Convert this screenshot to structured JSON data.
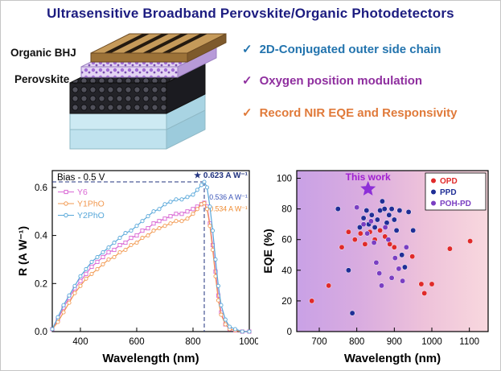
{
  "title": "Ultrasensitive Broadband Perovskite/Organic Photodetectors",
  "device": {
    "layers": [
      "Organic BHJ",
      "Perovskite"
    ]
  },
  "highlights": [
    {
      "check": "✓",
      "text": "2D-Conjugated outer side chain",
      "color": "#2374ae"
    },
    {
      "check": "✓",
      "text": "Oxygen position modulation",
      "color": "#8f2f9f"
    },
    {
      "check": "✓",
      "text": "Record NIR EQE and Responsivity",
      "color": "#e07a3a"
    }
  ],
  "chart_data": [
    {
      "type": "line",
      "title": "",
      "xlabel": "Wavelength (nm)",
      "ylabel": "R (A W⁻¹)",
      "xlim": [
        300,
        1000
      ],
      "ylim": [
        0,
        0.67
      ],
      "xticks": [
        [
          400,
          "400"
        ],
        [
          600,
          "600"
        ],
        [
          800,
          "800"
        ],
        [
          1000,
          "1000"
        ]
      ],
      "yticks": [
        [
          0.0,
          "0.0"
        ],
        [
          0.2,
          "0.2"
        ],
        [
          0.4,
          "0.4"
        ],
        [
          0.6,
          "0.6"
        ]
      ],
      "bias_label": "Bias - 0.5 V",
      "peak": {
        "x": 840,
        "y": 0.623,
        "label": "★ 0.623 A W⁻¹",
        "color": "#21337f"
      },
      "value_labels": [
        {
          "text": "0.536 A W⁻¹",
          "color": "#3b55b8",
          "x": 852,
          "y": 0.55
        },
        {
          "text": "0.534 A W⁻¹",
          "color": "#ef8c33",
          "x": 852,
          "y": 0.5
        }
      ],
      "legend_position": "upper-left",
      "series": [
        {
          "name": "Y6",
          "color": "#d967d4",
          "marker": "square",
          "points": [
            [
              300,
              0.01
            ],
            [
              320,
              0.05
            ],
            [
              340,
              0.1
            ],
            [
              360,
              0.14
            ],
            [
              380,
              0.18
            ],
            [
              400,
              0.21
            ],
            [
              420,
              0.24
            ],
            [
              440,
              0.27
            ],
            [
              460,
              0.29
            ],
            [
              480,
              0.31
            ],
            [
              500,
              0.33
            ],
            [
              520,
              0.34
            ],
            [
              540,
              0.36
            ],
            [
              560,
              0.37
            ],
            [
              580,
              0.39
            ],
            [
              600,
              0.4
            ],
            [
              620,
              0.42
            ],
            [
              640,
              0.43
            ],
            [
              660,
              0.45
            ],
            [
              680,
              0.46
            ],
            [
              700,
              0.47
            ],
            [
              720,
              0.48
            ],
            [
              740,
              0.49
            ],
            [
              760,
              0.49
            ],
            [
              780,
              0.5
            ],
            [
              800,
              0.51
            ],
            [
              815,
              0.52
            ],
            [
              830,
              0.53
            ],
            [
              840,
              0.536
            ],
            [
              850,
              0.52
            ],
            [
              860,
              0.45
            ],
            [
              870,
              0.36
            ],
            [
              880,
              0.25
            ],
            [
              890,
              0.15
            ],
            [
              900,
              0.08
            ],
            [
              915,
              0.03
            ],
            [
              930,
              0.01
            ],
            [
              950,
              0.005
            ],
            [
              975,
              0.0
            ],
            [
              1000,
              0.0
            ]
          ]
        },
        {
          "name": "Y1PhO",
          "color": "#f29a52",
          "marker": "circle",
          "points": [
            [
              300,
              0.01
            ],
            [
              320,
              0.04
            ],
            [
              340,
              0.08
            ],
            [
              360,
              0.12
            ],
            [
              380,
              0.16
            ],
            [
              400,
              0.19
            ],
            [
              420,
              0.22
            ],
            [
              440,
              0.24
            ],
            [
              460,
              0.26
            ],
            [
              480,
              0.28
            ],
            [
              500,
              0.3
            ],
            [
              520,
              0.31
            ],
            [
              540,
              0.33
            ],
            [
              560,
              0.34
            ],
            [
              580,
              0.36
            ],
            [
              600,
              0.37
            ],
            [
              620,
              0.39
            ],
            [
              640,
              0.4
            ],
            [
              660,
              0.42
            ],
            [
              680,
              0.43
            ],
            [
              700,
              0.44
            ],
            [
              720,
              0.45
            ],
            [
              740,
              0.46
            ],
            [
              760,
              0.46
            ],
            [
              780,
              0.47
            ],
            [
              800,
              0.49
            ],
            [
              815,
              0.51
            ],
            [
              830,
              0.53
            ],
            [
              840,
              0.534
            ],
            [
              850,
              0.51
            ],
            [
              860,
              0.44
            ],
            [
              870,
              0.34
            ],
            [
              880,
              0.23
            ],
            [
              890,
              0.13
            ],
            [
              900,
              0.07
            ],
            [
              915,
              0.03
            ],
            [
              930,
              0.01
            ],
            [
              950,
              0.005
            ],
            [
              975,
              0.0
            ],
            [
              1000,
              0.0
            ]
          ]
        },
        {
          "name": "Y2PhO",
          "color": "#57a7d9",
          "marker": "circle",
          "points": [
            [
              300,
              0.01
            ],
            [
              320,
              0.06
            ],
            [
              340,
              0.11
            ],
            [
              360,
              0.15
            ],
            [
              380,
              0.19
            ],
            [
              400,
              0.23
            ],
            [
              420,
              0.26
            ],
            [
              440,
              0.29
            ],
            [
              460,
              0.31
            ],
            [
              480,
              0.33
            ],
            [
              500,
              0.35
            ],
            [
              520,
              0.37
            ],
            [
              540,
              0.39
            ],
            [
              560,
              0.41
            ],
            [
              580,
              0.42
            ],
            [
              600,
              0.44
            ],
            [
              620,
              0.46
            ],
            [
              640,
              0.48
            ],
            [
              660,
              0.5
            ],
            [
              680,
              0.51
            ],
            [
              700,
              0.53
            ],
            [
              720,
              0.54
            ],
            [
              740,
              0.55
            ],
            [
              760,
              0.55
            ],
            [
              780,
              0.56
            ],
            [
              800,
              0.57
            ],
            [
              815,
              0.59
            ],
            [
              830,
              0.61
            ],
            [
              840,
              0.623
            ],
            [
              850,
              0.6
            ],
            [
              860,
              0.52
            ],
            [
              870,
              0.42
            ],
            [
              880,
              0.3
            ],
            [
              890,
              0.19
            ],
            [
              900,
              0.11
            ],
            [
              915,
              0.05
            ],
            [
              930,
              0.02
            ],
            [
              950,
              0.01
            ],
            [
              975,
              0.0
            ],
            [
              1000,
              0.0
            ]
          ]
        }
      ]
    },
    {
      "type": "scatter",
      "title": "",
      "xlabel": "Wavelength (nm)",
      "ylabel": "EQE (%)",
      "xlim": [
        640,
        1150
      ],
      "ylim": [
        0,
        105
      ],
      "xticks": [
        [
          700,
          "700"
        ],
        [
          800,
          "800"
        ],
        [
          900,
          "900"
        ],
        [
          1000,
          "1000"
        ],
        [
          1100,
          "1100"
        ]
      ],
      "yticks": [
        [
          0,
          "0"
        ],
        [
          20,
          "20"
        ],
        [
          40,
          "40"
        ],
        [
          60,
          "60"
        ],
        [
          80,
          "80"
        ],
        [
          100,
          "100"
        ]
      ],
      "bg_gradient": [
        "#c9a1e6",
        "#d9ace0",
        "#eec2da",
        "#f8d8de"
      ],
      "highlight": {
        "label": "This work",
        "x": 830,
        "y": 93,
        "color": "#a020d0",
        "star_color": "#8d2fd8"
      },
      "legend_position": "upper-right",
      "series": [
        {
          "name": "OPD",
          "color": "#e02a2a",
          "points": [
            [
              680,
              20
            ],
            [
              725,
              30
            ],
            [
              760,
              55
            ],
            [
              778,
              65
            ],
            [
              795,
              60
            ],
            [
              810,
              64
            ],
            [
              822,
              57
            ],
            [
              835,
              65
            ],
            [
              848,
              60
            ],
            [
              862,
              66
            ],
            [
              875,
              62
            ],
            [
              888,
              57
            ],
            [
              900,
              55
            ],
            [
              948,
              49
            ],
            [
              972,
              31
            ],
            [
              980,
              25
            ],
            [
              1000,
              31
            ],
            [
              1048,
              54
            ],
            [
              1102,
              59
            ]
          ]
        },
        {
          "name": "PPD",
          "color": "#1f2e96",
          "points": [
            [
              750,
              80
            ],
            [
              778,
              40
            ],
            [
              788,
              12
            ],
            [
              808,
              68
            ],
            [
              818,
              74
            ],
            [
              826,
              79
            ],
            [
              832,
              70
            ],
            [
              840,
              76
            ],
            [
              848,
              68
            ],
            [
              855,
              73
            ],
            [
              862,
              79
            ],
            [
              868,
              85
            ],
            [
              874,
              80
            ],
            [
              880,
              71
            ],
            [
              886,
              76
            ],
            [
              893,
              80
            ],
            [
              900,
              73
            ],
            [
              906,
              66
            ],
            [
              914,
              79
            ],
            [
              920,
              50
            ],
            [
              928,
              42
            ],
            [
              938,
              78
            ],
            [
              950,
              66
            ]
          ]
        },
        {
          "name": "POH-PD",
          "color": "#7a3ec2",
          "points": [
            [
              800,
              81
            ],
            [
              818,
              70
            ],
            [
              828,
              64
            ],
            [
              838,
              72
            ],
            [
              846,
              58
            ],
            [
              852,
              45
            ],
            [
              860,
              38
            ],
            [
              866,
              30
            ],
            [
              876,
              68
            ],
            [
              884,
              60
            ],
            [
              893,
              35
            ],
            [
              902,
              48
            ],
            [
              912,
              41
            ],
            [
              922,
              33
            ],
            [
              932,
              55
            ]
          ]
        }
      ]
    }
  ]
}
